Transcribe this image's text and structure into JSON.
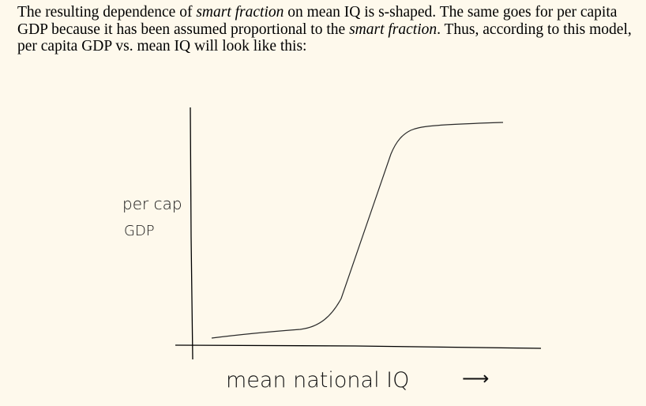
{
  "text": {
    "line1_a": "The resulting dependence of ",
    "line1_em": "smart fraction",
    "line1_b": " on mean IQ is s-shaped. The same goes for per capita",
    "line2_a": "GDP because it has been assumed proportional to the ",
    "line2_em": "smart fraction",
    "line2_b": ". Thus, according to this model,",
    "line3": "per capita GDP vs. mean IQ will look like this:"
  },
  "sketch": {
    "ylabel_line1": "per cap",
    "ylabel_line2": "GDP",
    "xlabel": "mean national IQ",
    "xarrow": "⟶"
  },
  "chart_data": {
    "type": "line",
    "shape": "s-shaped",
    "ylabel": "per cap GDP",
    "xlabel": "mean national IQ",
    "grid": false,
    "series": [
      {
        "x": [
          0,
          0.12,
          0.3,
          0.38,
          0.42,
          0.46,
          0.5,
          0.6,
          0.7,
          0.74,
          0.82,
          1.0
        ],
        "y": [
          0.0,
          0.01,
          0.02,
          0.05,
          0.12,
          0.25,
          0.4,
          0.75,
          0.92,
          0.95,
          0.96,
          0.97
        ]
      }
    ]
  }
}
